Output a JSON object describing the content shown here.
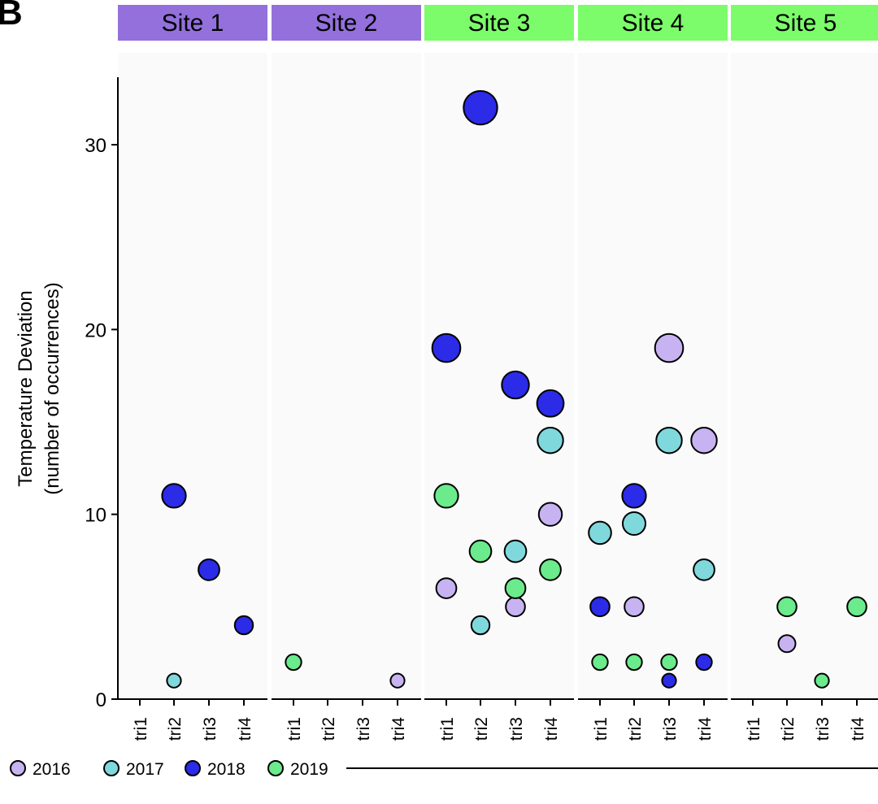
{
  "panel_label": "B",
  "chart_data": {
    "type": "scatter",
    "ylabel_line1": "Temperature Deviation",
    "ylabel_line2": "(number of occurrences)",
    "ylim": [
      0,
      33
    ],
    "yticks": [
      0,
      10,
      20,
      30
    ],
    "categories": [
      "tri1",
      "tri2",
      "tri3",
      "tri4"
    ],
    "facets": [
      {
        "label": "Site 1",
        "color": "#9370DB"
      },
      {
        "label": "Site 2",
        "color": "#9370DB"
      },
      {
        "label": "Site 3",
        "color": "#7CFC6A"
      },
      {
        "label": "Site 4",
        "color": "#7CFC6A"
      },
      {
        "label": "Site 5",
        "color": "#7CFC6A"
      }
    ],
    "legend_position": "bottom-left",
    "series": [
      {
        "name": "2016",
        "color": "#C7B3F2",
        "points": [
          {
            "site": "Site 2",
            "x": "tri4",
            "y": 1
          },
          {
            "site": "Site 3",
            "x": "tri1",
            "y": 6
          },
          {
            "site": "Site 3",
            "x": "tri3",
            "y": 5
          },
          {
            "site": "Site 3",
            "x": "tri4",
            "y": 10
          },
          {
            "site": "Site 4",
            "x": "tri2",
            "y": 5
          },
          {
            "site": "Site 4",
            "x": "tri3",
            "y": 19
          },
          {
            "site": "Site 4",
            "x": "tri4",
            "y": 14
          },
          {
            "site": "Site 5",
            "x": "tri2",
            "y": 3
          }
        ]
      },
      {
        "name": "2017",
        "color": "#7FD8DC",
        "points": [
          {
            "site": "Site 1",
            "x": "tri2",
            "y": 1
          },
          {
            "site": "Site 3",
            "x": "tri2",
            "y": 4
          },
          {
            "site": "Site 3",
            "x": "tri3",
            "y": 8
          },
          {
            "site": "Site 3",
            "x": "tri4",
            "y": 14
          },
          {
            "site": "Site 4",
            "x": "tri1",
            "y": 9
          },
          {
            "site": "Site 4",
            "x": "tri2",
            "y": 9.5
          },
          {
            "site": "Site 4",
            "x": "tri3",
            "y": 14
          },
          {
            "site": "Site 4",
            "x": "tri4",
            "y": 7
          }
        ]
      },
      {
        "name": "2018",
        "color": "#2B2BE8",
        "points": [
          {
            "site": "Site 1",
            "x": "tri2",
            "y": 11
          },
          {
            "site": "Site 1",
            "x": "tri3",
            "y": 7
          },
          {
            "site": "Site 1",
            "x": "tri4",
            "y": 4
          },
          {
            "site": "Site 3",
            "x": "tri1",
            "y": 19
          },
          {
            "site": "Site 3",
            "x": "tri2",
            "y": 32
          },
          {
            "site": "Site 3",
            "x": "tri3",
            "y": 17
          },
          {
            "site": "Site 3",
            "x": "tri4",
            "y": 16
          },
          {
            "site": "Site 4",
            "x": "tri1",
            "y": 5
          },
          {
            "site": "Site 4",
            "x": "tri2",
            "y": 11
          },
          {
            "site": "Site 4",
            "x": "tri3",
            "y": 1
          },
          {
            "site": "Site 4",
            "x": "tri4",
            "y": 2
          }
        ]
      },
      {
        "name": "2019",
        "color": "#6BEB8C",
        "points": [
          {
            "site": "Site 2",
            "x": "tri1",
            "y": 2
          },
          {
            "site": "Site 3",
            "x": "tri1",
            "y": 11
          },
          {
            "site": "Site 3",
            "x": "tri2",
            "y": 8
          },
          {
            "site": "Site 3",
            "x": "tri3",
            "y": 6
          },
          {
            "site": "Site 3",
            "x": "tri4",
            "y": 7
          },
          {
            "site": "Site 4",
            "x": "tri1",
            "y": 2
          },
          {
            "site": "Site 4",
            "x": "tri2",
            "y": 2
          },
          {
            "site": "Site 4",
            "x": "tri3",
            "y": 2
          },
          {
            "site": "Site 5",
            "x": "tri2",
            "y": 5
          },
          {
            "site": "Site 5",
            "x": "tri3",
            "y": 1
          },
          {
            "site": "Site 5",
            "x": "tri4",
            "y": 5
          }
        ]
      }
    ]
  }
}
